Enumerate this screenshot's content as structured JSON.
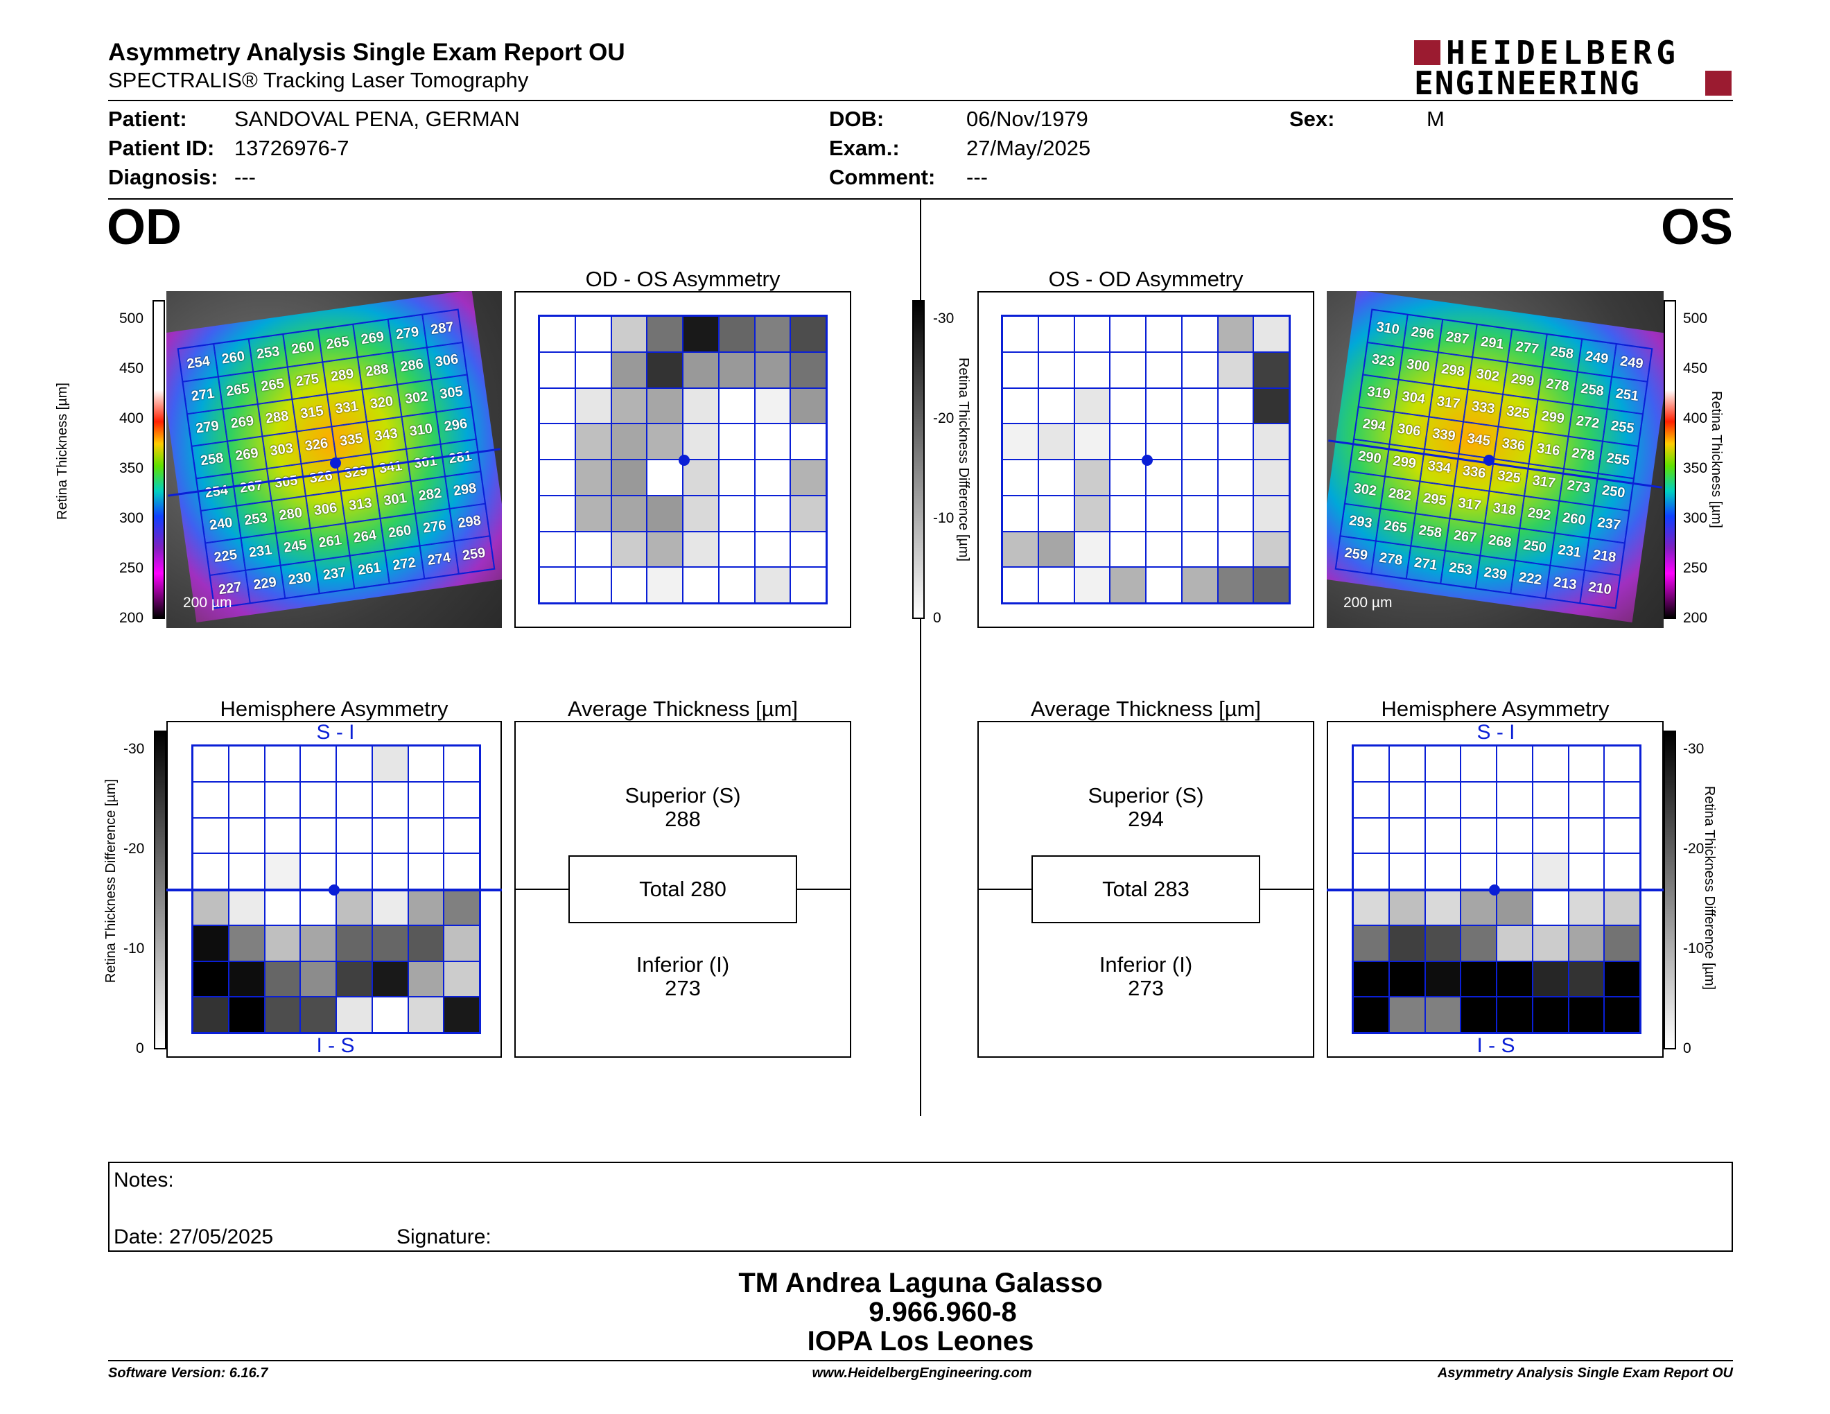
{
  "header": {
    "title": "Asymmetry Analysis Single Exam Report OU",
    "subtitle": "SPECTRALIS® Tracking Laser Tomography",
    "logo_line1": "HEIDELBERG",
    "logo_line2": "ENGINEERING"
  },
  "patient": {
    "patient_label": "Patient:",
    "patient_value": "SANDOVAL PENA, GERMAN",
    "id_label": "Patient ID:",
    "id_value": "13726976-7",
    "diagnosis_label": "Diagnosis:",
    "diagnosis_value": "---",
    "dob_label": "DOB:",
    "dob_value": "06/Nov/1979",
    "exam_label": "Exam.:",
    "exam_value": "27/May/2025",
    "comment_label": "Comment:",
    "comment_value": "---",
    "sex_label": "Sex:",
    "sex_value": "M"
  },
  "od": {
    "eye": "OD",
    "asym_title": "OD - OS Asymmetry",
    "hemi_title": "Hemisphere Asymmetry",
    "avg_title": "Average Thickness [µm]",
    "superior_label": "Superior (S)",
    "superior_value": "288",
    "total_label": "Total 280",
    "inferior_label": "Inferior (I)",
    "inferior_value": "273",
    "si_label": "S - I",
    "is_label": "I - S",
    "scale_label": "200 µm",
    "thickness": [
      [
        254,
        260,
        253,
        260,
        265,
        269,
        279,
        287
      ],
      [
        271,
        265,
        265,
        275,
        289,
        288,
        286,
        306
      ],
      [
        279,
        269,
        288,
        315,
        331,
        320,
        302,
        305
      ],
      [
        258,
        269,
        303,
        326,
        335,
        343,
        310,
        296
      ],
      [
        254,
        267,
        305,
        326,
        329,
        341,
        301,
        281
      ],
      [
        240,
        253,
        280,
        306,
        313,
        301,
        282,
        298
      ],
      [
        225,
        231,
        245,
        261,
        264,
        260,
        276,
        298
      ],
      [
        227,
        229,
        230,
        237,
        261,
        272,
        274,
        259
      ]
    ],
    "asym_levels": [
      [
        0,
        0,
        0.2,
        0.55,
        0.9,
        0.6,
        0.5,
        0.7
      ],
      [
        0,
        0,
        0.4,
        0.8,
        0.4,
        0.4,
        0.4,
        0.55
      ],
      [
        0,
        0.1,
        0.3,
        0.35,
        0.1,
        0,
        0.05,
        0.4
      ],
      [
        0,
        0.25,
        0.35,
        0.3,
        0.1,
        0,
        0,
        0
      ],
      [
        0,
        0.3,
        0.4,
        0,
        0.15,
        0,
        0,
        0.3
      ],
      [
        0,
        0.3,
        0.35,
        0.4,
        0.15,
        0,
        0,
        0.2
      ],
      [
        0,
        0,
        0.2,
        0.3,
        0.1,
        0,
        0,
        0
      ],
      [
        0,
        0,
        0,
        0.05,
        0,
        0,
        0.1,
        0
      ]
    ],
    "hemi_levels": [
      [
        0,
        0,
        0,
        0,
        0,
        0.1,
        0,
        0
      ],
      [
        0,
        0,
        0,
        0,
        0,
        0,
        0,
        0
      ],
      [
        0,
        0,
        0,
        0,
        0,
        0,
        0,
        0
      ],
      [
        0,
        0,
        0.05,
        0,
        0,
        0,
        0,
        0
      ],
      [
        0.25,
        0.08,
        0,
        0,
        0.25,
        0.08,
        0.35,
        0.5
      ],
      [
        0.95,
        0.5,
        0.25,
        0.35,
        0.6,
        0.6,
        0.65,
        0.25
      ],
      [
        1,
        0.95,
        0.6,
        0.45,
        0.75,
        0.9,
        0.35,
        0.2
      ],
      [
        0.8,
        1,
        0.7,
        0.7,
        0.1,
        0,
        0.15,
        0.9
      ]
    ]
  },
  "os": {
    "eye": "OS",
    "asym_title": "OS - OD Asymmetry",
    "hemi_title": "Hemisphere Asymmetry",
    "avg_title": "Average Thickness [µm]",
    "superior_label": "Superior (S)",
    "superior_value": "294",
    "total_label": "Total 283",
    "inferior_label": "Inferior (I)",
    "inferior_value": "273",
    "si_label": "S - I",
    "is_label": "I - S",
    "scale_label": "200 µm",
    "thickness": [
      [
        310,
        296,
        287,
        291,
        277,
        258,
        249,
        249
      ],
      [
        323,
        300,
        298,
        302,
        299,
        278,
        258,
        251
      ],
      [
        319,
        304,
        317,
        333,
        325,
        299,
        272,
        255
      ],
      [
        294,
        306,
        339,
        345,
        336,
        316,
        278,
        255
      ],
      [
        290,
        299,
        334,
        336,
        325,
        317,
        273,
        250
      ],
      [
        302,
        282,
        295,
        317,
        318,
        292,
        260,
        237
      ],
      [
        293,
        265,
        258,
        267,
        268,
        250,
        231,
        218
      ],
      [
        259,
        278,
        271,
        253,
        239,
        222,
        213,
        210
      ]
    ],
    "asym_levels": [
      [
        0,
        0,
        0,
        0,
        0,
        0,
        0.3,
        0.1
      ],
      [
        0,
        0,
        0,
        0,
        0,
        0,
        0.15,
        0.75
      ],
      [
        0,
        0,
        0.1,
        0,
        0,
        0,
        0,
        0.8
      ],
      [
        0.05,
        0.1,
        0.05,
        0,
        0,
        0,
        0,
        0.1
      ],
      [
        0,
        0,
        0.2,
        0,
        0,
        0,
        0,
        0.1
      ],
      [
        0,
        0,
        0.2,
        0,
        0,
        0,
        0,
        0.1
      ],
      [
        0.25,
        0.35,
        0.05,
        0,
        0,
        0,
        0,
        0.2
      ],
      [
        0,
        0,
        0.05,
        0.3,
        0,
        0.3,
        0.5,
        0.6
      ]
    ],
    "hemi_levels": [
      [
        0,
        0,
        0,
        0,
        0,
        0,
        0,
        0
      ],
      [
        0,
        0,
        0,
        0,
        0,
        0,
        0,
        0
      ],
      [
        0,
        0,
        0,
        0,
        0,
        0,
        0,
        0
      ],
      [
        0,
        0,
        0,
        0,
        0,
        0.08,
        0,
        0
      ],
      [
        0.15,
        0.25,
        0.15,
        0.35,
        0.4,
        0,
        0.15,
        0.2
      ],
      [
        0.55,
        0.75,
        0.7,
        0.55,
        0.2,
        0.2,
        0.35,
        0.55
      ],
      [
        1,
        1,
        0.95,
        1,
        1,
        0.85,
        0.8,
        1
      ],
      [
        1,
        0.5,
        0.5,
        1,
        1,
        1,
        1,
        1
      ]
    ]
  },
  "axes": {
    "thickness_label": "Retina Thickness [µm]",
    "thickness_ticks": [
      "500",
      "450",
      "400",
      "350",
      "300",
      "250",
      "200"
    ],
    "diff_label": "Retina Thickness Difference [µm]",
    "diff_ticks": [
      "-30",
      "-20",
      "-10",
      "0"
    ]
  },
  "notes": {
    "notes_label": "Notes:",
    "date_label": "Date: 27/05/2025",
    "signature_label": "Signature:"
  },
  "signatory": {
    "name": "TM Andrea Laguna Galasso",
    "id": "9.966.960-8",
    "org": "IOPA Los Leones"
  },
  "footer": {
    "software": "Software Version: 6.16.7",
    "website": "www.HeidelbergEngineering.com",
    "report": "Asymmetry Analysis Single Exam Report OU"
  },
  "colors": {
    "accent_blue": "#0a1fd6",
    "logo_red": "#9b1b30"
  }
}
